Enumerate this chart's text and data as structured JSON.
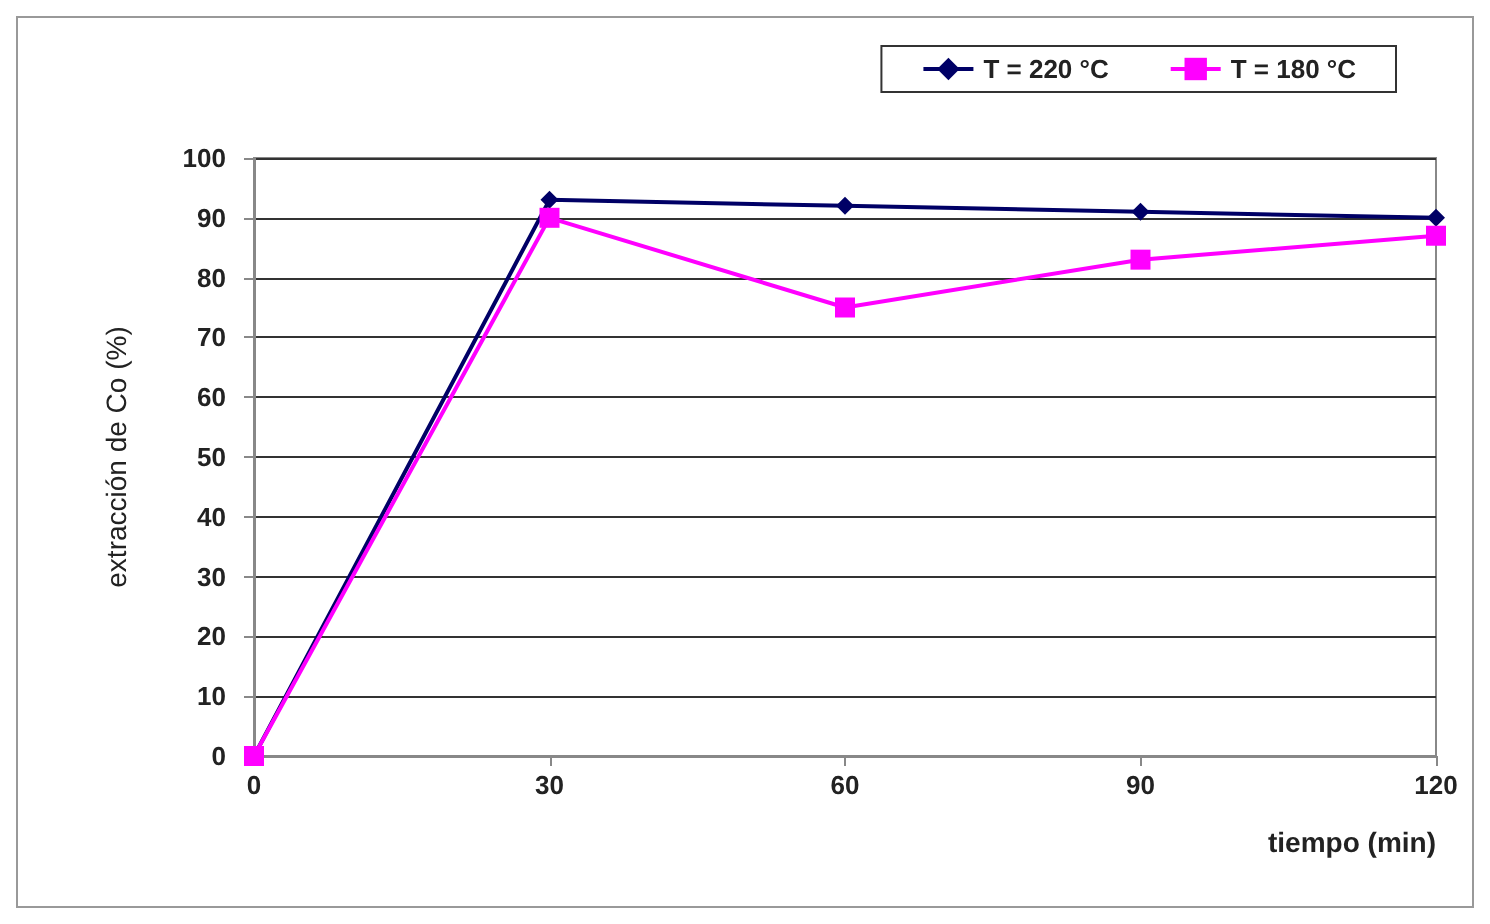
{
  "chart_data": {
    "type": "line",
    "xlabel": "tiempo (min)",
    "ylabel": "extracción de Co (%)",
    "x": [
      0,
      30,
      60,
      90,
      120
    ],
    "xlim": [
      0,
      120
    ],
    "xticks": [
      0,
      30,
      60,
      90,
      120
    ],
    "ylim": [
      0,
      100
    ],
    "yticks": [
      0,
      10,
      20,
      30,
      40,
      50,
      60,
      70,
      80,
      90,
      100
    ],
    "grid": "y",
    "legend": "top right",
    "line_style": "solid",
    "series": [
      {
        "name": "T = 220 °C",
        "color": "#000066",
        "marker": "diamond",
        "values": [
          0,
          93,
          92,
          91,
          90
        ]
      },
      {
        "name": "T = 180 °C",
        "color": "#ff00ff",
        "marker": "square",
        "values": [
          0,
          90,
          75,
          83,
          87
        ]
      }
    ]
  }
}
